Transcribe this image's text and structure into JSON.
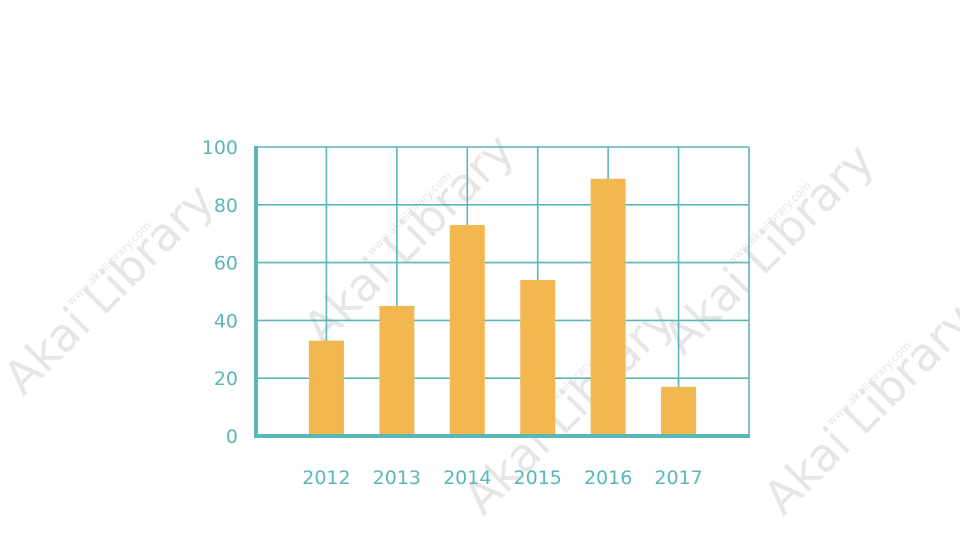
{
  "colors": {
    "grid": "#5AB7B7",
    "axis": "#5AB7B7",
    "bar": "#F2B84F",
    "tick_text": "#5AB7B7",
    "background": "#FFFFFF",
    "watermark": "#E6E6E6"
  },
  "watermark": {
    "text": "Akai Library",
    "subtext": "www.akailibrary.com"
  },
  "chart_data": {
    "type": "bar",
    "title": "",
    "xlabel": "",
    "ylabel": "",
    "categories": [
      "2012",
      "2013",
      "2014",
      "2015",
      "2016",
      "2017"
    ],
    "values": [
      33,
      45,
      73,
      54,
      89,
      17
    ],
    "ylim": [
      0,
      100
    ],
    "yticks": [
      "0",
      "20",
      "40",
      "60",
      "80",
      "100"
    ],
    "ytick_values": [
      0,
      20,
      40,
      60,
      80,
      100
    ],
    "grid": true,
    "legend": "none"
  }
}
